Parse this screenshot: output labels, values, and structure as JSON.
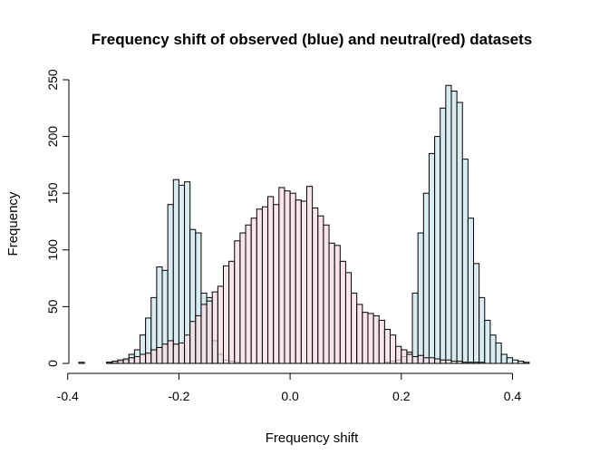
{
  "chart_data": {
    "type": "bar",
    "title": "Frequency shift of observed (blue) and neutral(red) datasets",
    "xlabel": "Frequency shift",
    "ylabel": "Frequency",
    "xlim": [
      -0.38,
      0.44
    ],
    "ylim": [
      0,
      250
    ],
    "x_ticks": [
      -0.4,
      -0.2,
      0.0,
      0.2,
      0.4
    ],
    "x_tick_labels": [
      "-0.4",
      "-0.2",
      "0.0",
      "0.2",
      "0.4"
    ],
    "y_ticks": [
      0,
      50,
      100,
      150,
      200,
      250
    ],
    "y_tick_labels": [
      "0",
      "50",
      "100",
      "150",
      "200",
      "250"
    ],
    "grid": false,
    "legend": "none",
    "bin_width": 0.01,
    "bin_start": -0.38,
    "colors": {
      "observed_fill": "#d8ecf2",
      "neutral_fill": "#f8dde2",
      "bar_stroke": "#000000"
    },
    "series": [
      {
        "values": [
          1,
          0,
          0,
          0,
          0,
          1,
          1,
          2,
          3,
          8,
          12,
          25,
          40,
          58,
          85,
          82,
          140,
          162,
          157,
          160,
          118,
          115,
          62,
          58,
          20,
          8,
          3,
          2,
          1,
          0,
          0,
          0,
          0,
          0,
          0,
          0,
          0,
          0,
          0,
          0,
          0,
          0,
          0,
          0,
          0,
          0,
          0,
          0,
          0,
          0,
          0,
          0,
          0,
          0,
          0,
          1,
          2,
          3,
          6,
          10,
          62,
          115,
          150,
          185,
          200,
          225,
          245,
          240,
          230,
          180,
          128,
          88,
          58,
          38,
          25,
          18,
          8,
          5,
          3,
          2,
          1,
          0
        ]
      },
      {
        "values": [
          0,
          0,
          0,
          0,
          0,
          1,
          2,
          3,
          4,
          5,
          6,
          8,
          9,
          12,
          14,
          17,
          20,
          17,
          18,
          25,
          37,
          42,
          52,
          55,
          63,
          68,
          86,
          90,
          108,
          115,
          122,
          128,
          136,
          138,
          147,
          140,
          155,
          152,
          150,
          144,
          143,
          156,
          137,
          130,
          122,
          106,
          104,
          90,
          80,
          62,
          52,
          45,
          44,
          42,
          38,
          30,
          25,
          15,
          12,
          8,
          6,
          7,
          5,
          5,
          4,
          3,
          3,
          2,
          2,
          1,
          1,
          1,
          1,
          0,
          0,
          0,
          0,
          0,
          0,
          0,
          0,
          0
        ]
      }
    ]
  }
}
